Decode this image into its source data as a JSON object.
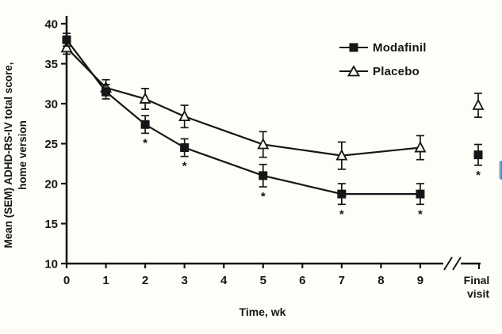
{
  "figure_colors": {
    "line": "#161616",
    "triangle_fill": "#faf9f4",
    "background": "#fefdf8",
    "edge_artifact_blue": "#2e79cd"
  },
  "chart_data": {
    "type": "line",
    "title": "",
    "xlabel": "Time, wk",
    "ylabel": "Mean (SEM) ADHD-RS-IV total score, home version",
    "ylabel_lines": [
      "Mean (SEM) ADHD-RS-IV total score,",
      "home version"
    ],
    "ylim": [
      10,
      40
    ],
    "y_ticks": [
      40,
      35,
      30,
      25,
      20,
      15,
      10
    ],
    "x_ticks": [
      0,
      1,
      2,
      3,
      4,
      5,
      6,
      7,
      8,
      9
    ],
    "x_axis_break": true,
    "final_visit_label_lines": [
      "Final",
      "visit"
    ],
    "grid": false,
    "legend_position": "inside top-right",
    "error_bars": "SEM",
    "asterisk_symbol": "*",
    "series": [
      {
        "name": "Modafinil",
        "marker": "filled-square",
        "x": [
          0,
          1,
          2,
          3,
          5,
          7,
          9
        ],
        "values": [
          38.0,
          31.5,
          27.4,
          24.5,
          21.0,
          18.7,
          18.7
        ],
        "sem": [
          0.8,
          0.9,
          1.1,
          1.1,
          1.4,
          1.3,
          1.3
        ],
        "final_visit": {
          "value": 23.6,
          "sem": 1.3
        },
        "asterisk_at": [
          2,
          3,
          5,
          7,
          9,
          "final"
        ]
      },
      {
        "name": "Placebo",
        "marker": "open-triangle",
        "x": [
          0,
          1,
          2,
          3,
          5,
          7,
          9
        ],
        "values": [
          37.0,
          32.0,
          30.6,
          28.4,
          24.9,
          23.5,
          24.5
        ],
        "sem": [
          0.8,
          1.0,
          1.3,
          1.4,
          1.6,
          1.7,
          1.5
        ],
        "final_visit": {
          "value": 29.8,
          "sem": 1.5
        },
        "asterisk_at": []
      }
    ]
  }
}
